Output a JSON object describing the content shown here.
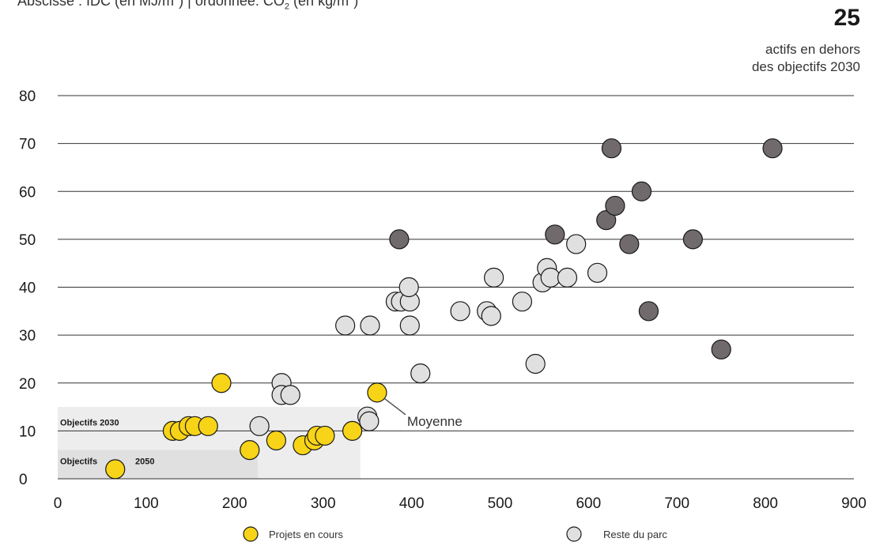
{
  "header": {
    "prefix": "Abscisse : IDC (en MJ/m",
    "sup1": "2",
    "mid": ") | ordonnée: CO",
    "sub": "2",
    "mid2": " (en kg/m",
    "sup2": "2",
    "end": ")"
  },
  "kpi": {
    "value": "25",
    "caption_line1": "actifs en dehors",
    "caption_line2": "des objectifs 2030"
  },
  "colors": {
    "projets": "#F7D417",
    "reste": "#E0E0E0",
    "hors": "#716A6D",
    "zone2030": "#EDEDEE",
    "zone2050": "#E0E0E1",
    "grid": "#333333"
  },
  "chart_data": {
    "type": "scatter",
    "xlim": [
      0,
      900
    ],
    "ylim": [
      0,
      80
    ],
    "x_ticks": [
      0,
      100,
      200,
      300,
      400,
      500,
      600,
      700,
      800,
      900
    ],
    "y_ticks": [
      0,
      10,
      20,
      30,
      40,
      50,
      60,
      70,
      80
    ],
    "grid": "horizontal",
    "legend_position": "bottom",
    "zones": [
      {
        "label": "Objectifs 2030",
        "x_max": 342,
        "y_max": 15
      },
      {
        "label": "Objectifs",
        "label2": "2050",
        "x_max": 226,
        "y_max": 6
      }
    ],
    "annotation": {
      "text": "Moyenne",
      "x": 361,
      "y": 18
    },
    "series": [
      {
        "name": "Projets en cours",
        "color": "#F7D417",
        "points": [
          [
            65,
            2
          ],
          [
            130,
            10
          ],
          [
            138,
            10
          ],
          [
            148,
            11
          ],
          [
            155,
            11
          ],
          [
            170,
            11
          ],
          [
            185,
            20
          ],
          [
            217,
            6
          ],
          [
            247,
            8
          ],
          [
            277,
            7
          ],
          [
            290,
            8
          ],
          [
            293,
            9
          ],
          [
            302,
            9
          ],
          [
            333,
            10
          ],
          [
            361,
            18
          ]
        ]
      },
      {
        "name": "Reste du parc",
        "color": "#E0E0E0",
        "points": [
          [
            228,
            11
          ],
          [
            253,
            20
          ],
          [
            253,
            17.5
          ],
          [
            263,
            17.5
          ],
          [
            325,
            32
          ],
          [
            353,
            32
          ],
          [
            350,
            13
          ],
          [
            352,
            12
          ],
          [
            382,
            37
          ],
          [
            388,
            37
          ],
          [
            398,
            37
          ],
          [
            397,
            40
          ],
          [
            398,
            32
          ],
          [
            410,
            22
          ],
          [
            455,
            35
          ],
          [
            485,
            35
          ],
          [
            490,
            34
          ],
          [
            493,
            42
          ],
          [
            525,
            37
          ],
          [
            540,
            24
          ],
          [
            548,
            41
          ],
          [
            553,
            44
          ],
          [
            557,
            42
          ],
          [
            576,
            42
          ],
          [
            586,
            49
          ],
          [
            610,
            43
          ]
        ]
      },
      {
        "name": "",
        "color": "#716A6D",
        "points": [
          [
            386,
            50
          ],
          [
            562,
            51
          ],
          [
            620,
            54
          ],
          [
            626,
            69
          ],
          [
            630,
            57
          ],
          [
            646,
            49
          ],
          [
            660,
            60
          ],
          [
            668,
            35
          ],
          [
            718,
            50
          ],
          [
            750,
            27
          ],
          [
            808,
            69
          ]
        ]
      }
    ]
  },
  "legend": [
    {
      "label": "Projets en cours",
      "color": "#F7D417"
    },
    {
      "label": "Reste du parc",
      "color": "#E0E0E0"
    }
  ]
}
